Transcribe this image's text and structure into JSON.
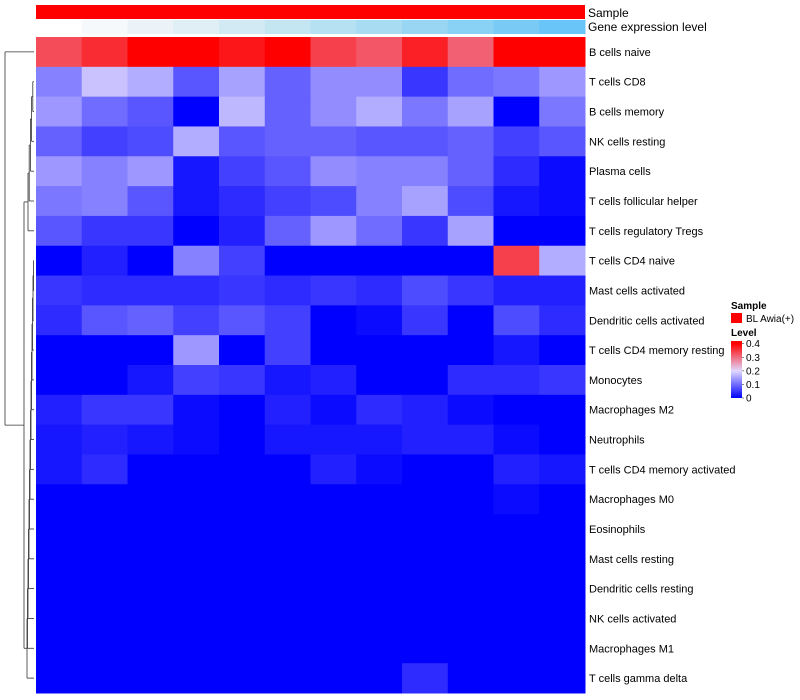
{
  "chart_data": {
    "type": "heatmap",
    "title": "",
    "xlabel": "",
    "ylabel": "",
    "column_annotations": [
      {
        "name": "Sample",
        "color": "#ff0000"
      },
      {
        "name": "Gene expression level",
        "colors": [
          "#ffffff",
          "#f5f9fb",
          "#ebf3f8",
          "#e0eef5",
          "#d2eaf4",
          "#c4e6f3",
          "#b5e1f3",
          "#a7dcf3",
          "#98d6f4",
          "#89d1f5",
          "#79cbf6",
          "#69c5f7"
        ]
      }
    ],
    "rows": [
      "B cells naive",
      "T cells CD8",
      "B cells memory",
      "NK cells resting",
      "Plasma cells",
      "T cells follicular helper",
      "T cells regulatory  Tregs",
      "T cells CD4 naive",
      "Mast cells activated",
      "Dendritic cells activated",
      "T cells CD4 memory resting",
      "Monocytes",
      "Macrophages M2",
      "Neutrophils",
      "T cells CD4 memory activated",
      "Macrophages M0",
      "Eosinophils",
      "Mast cells resting",
      "Dendritic cells resting",
      "NK cells activated",
      "Macrophages M1",
      "T cells gamma delta"
    ],
    "values": [
      [
        0.33,
        0.36,
        0.4,
        0.42,
        0.38,
        0.42,
        0.34,
        0.32,
        0.37,
        0.31,
        0.4,
        0.42
      ],
      [
        0.12,
        0.18,
        0.16,
        0.08,
        0.15,
        0.09,
        0.13,
        0.13,
        0.05,
        0.1,
        0.11,
        0.14
      ],
      [
        0.14,
        0.1,
        0.08,
        0.0,
        0.17,
        0.09,
        0.13,
        0.16,
        0.11,
        0.15,
        0.0,
        0.11
      ],
      [
        0.09,
        0.06,
        0.07,
        0.16,
        0.08,
        0.09,
        0.09,
        0.08,
        0.08,
        0.09,
        0.06,
        0.08
      ],
      [
        0.14,
        0.12,
        0.14,
        0.02,
        0.06,
        0.08,
        0.13,
        0.12,
        0.12,
        0.09,
        0.04,
        0.01
      ],
      [
        0.11,
        0.12,
        0.08,
        0.02,
        0.04,
        0.06,
        0.07,
        0.12,
        0.15,
        0.07,
        0.02,
        0.01
      ],
      [
        0.08,
        0.05,
        0.05,
        0.0,
        0.03,
        0.09,
        0.14,
        0.1,
        0.05,
        0.15,
        0.0,
        0.0
      ],
      [
        0.0,
        0.03,
        0.0,
        0.12,
        0.06,
        0.0,
        0.0,
        0.0,
        0.0,
        0.0,
        0.34,
        0.16
      ],
      [
        0.05,
        0.04,
        0.04,
        0.04,
        0.05,
        0.04,
        0.05,
        0.04,
        0.07,
        0.05,
        0.03,
        0.03
      ],
      [
        0.04,
        0.08,
        0.09,
        0.06,
        0.08,
        0.06,
        0.0,
        0.01,
        0.05,
        0.0,
        0.07,
        0.04
      ],
      [
        0.0,
        0.0,
        0.0,
        0.14,
        0.0,
        0.06,
        0.0,
        0.0,
        0.0,
        0.0,
        0.02,
        0.0
      ],
      [
        0.0,
        0.0,
        0.02,
        0.06,
        0.05,
        0.02,
        0.03,
        0.0,
        0.0,
        0.04,
        0.04,
        0.05
      ],
      [
        0.03,
        0.05,
        0.05,
        0.01,
        0.0,
        0.03,
        0.01,
        0.04,
        0.03,
        0.01,
        0.0,
        0.0
      ],
      [
        0.02,
        0.03,
        0.02,
        0.01,
        0.0,
        0.02,
        0.02,
        0.02,
        0.03,
        0.03,
        0.01,
        0.0
      ],
      [
        0.02,
        0.04,
        0.0,
        0.0,
        0.0,
        0.0,
        0.03,
        0.01,
        0.0,
        0.0,
        0.03,
        0.02
      ],
      [
        0.0,
        0.0,
        0.0,
        0.0,
        0.0,
        0.0,
        0.0,
        0.0,
        0.0,
        0.0,
        0.01,
        0.0
      ],
      [
        0.0,
        0.0,
        0.0,
        0.0,
        0.0,
        0.0,
        0.0,
        0.0,
        0.0,
        0.0,
        0.0,
        0.0
      ],
      [
        0.0,
        0.0,
        0.0,
        0.0,
        0.0,
        0.0,
        0.0,
        0.0,
        0.0,
        0.0,
        0.0,
        0.0
      ],
      [
        0.0,
        0.0,
        0.0,
        0.0,
        0.0,
        0.0,
        0.0,
        0.0,
        0.0,
        0.0,
        0.0,
        0.0
      ],
      [
        0.0,
        0.0,
        0.0,
        0.0,
        0.0,
        0.0,
        0.0,
        0.0,
        0.0,
        0.0,
        0.0,
        0.0
      ],
      [
        0.0,
        0.0,
        0.0,
        0.0,
        0.0,
        0.0,
        0.0,
        0.0,
        0.0,
        0.0,
        0.0,
        0.0
      ],
      [
        0.0,
        0.0,
        0.0,
        0.0,
        0.0,
        0.0,
        0.0,
        0.0,
        0.04,
        0.0,
        0.0,
        0.0
      ]
    ],
    "color_scale": {
      "stops": [
        {
          "value": 0.0,
          "color": "#0000ff"
        },
        {
          "value": 0.2,
          "color": "#e0d8ff"
        },
        {
          "value": 0.4,
          "color": "#ff0000"
        }
      ],
      "range": [
        0,
        0.42
      ]
    },
    "dendrogram": {
      "side": "left",
      "order_groups": [
        [
          0
        ],
        [
          1,
          2,
          3,
          4,
          5,
          6
        ],
        [
          7,
          8,
          9,
          10,
          11,
          12,
          13,
          14,
          15,
          16,
          17,
          18,
          19,
          20,
          21
        ]
      ]
    },
    "legend": {
      "placement": "right",
      "sample_title": "Sample",
      "sample_entry": "BL Awia(+)",
      "sample_color": "#ff0000",
      "level_title": "Level",
      "level_ticks": [
        "0.4",
        "0.3",
        "0.2",
        "0.1",
        "0"
      ],
      "level_tick_values": [
        0.4,
        0.3,
        0.2,
        0.1,
        0.0
      ]
    }
  }
}
